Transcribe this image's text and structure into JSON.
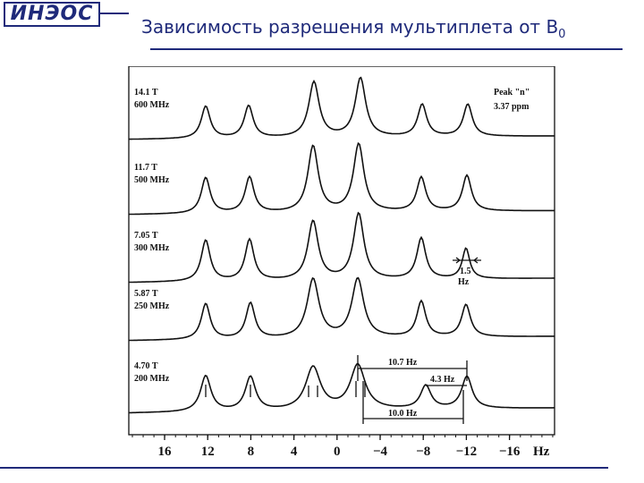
{
  "logo": {
    "text": "ИНЭОС"
  },
  "title": {
    "main": "Зависимость разрешения мультиплета от В",
    "subscript": "0"
  },
  "diagram": {
    "spectra": [
      {
        "field": "14.1 T",
        "freq": "600 MHz"
      },
      {
        "field": "11.7 T",
        "freq": "500 MHz"
      },
      {
        "field": "7.05 T",
        "freq": "300 MHz"
      },
      {
        "field": "5.87 T",
        "freq": "250 MHz"
      },
      {
        "field": "4.70 T",
        "freq": "200 MHz"
      }
    ],
    "peak_label": {
      "line1": "Peak \"n\"",
      "line2": "3.37 ppm"
    },
    "annotations": {
      "width_value": "1.5",
      "width_unit": "Hz",
      "big_span": "10.7 Hz",
      "small_span": "4.3 Hz",
      "bottom_span": "10.0 Hz"
    },
    "axis": {
      "ticks": [
        "16",
        "12",
        "8",
        "4",
        "0",
        "−4",
        "−8",
        "−12",
        "−16"
      ],
      "unit": "Hz"
    }
  }
}
